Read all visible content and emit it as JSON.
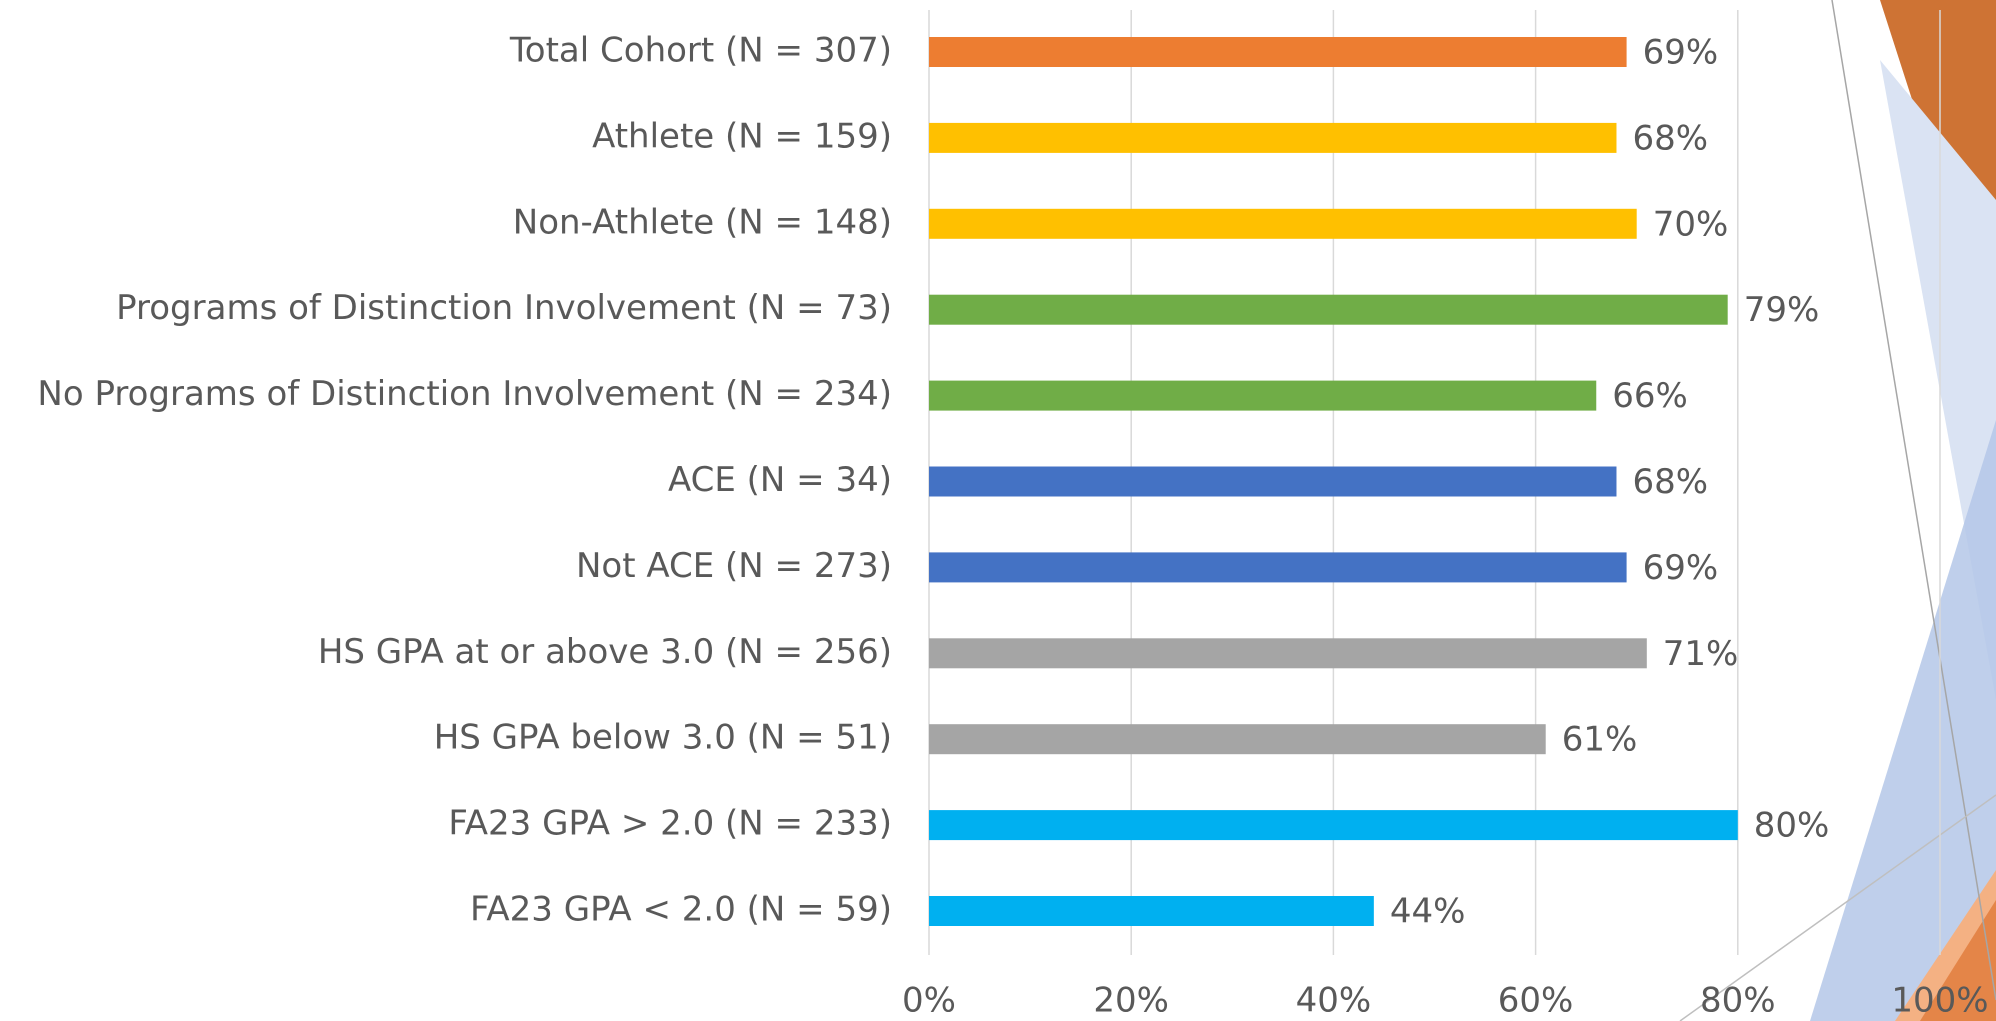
{
  "chart_data": {
    "type": "bar",
    "orientation": "horizontal",
    "categories": [
      "Total Cohort (N = 307)",
      "Athlete (N = 159)",
      "Non-Athlete (N = 148)",
      "Programs of Distinction Involvement (N = 73)",
      "No Programs of Distinction Involvement (N = 234)",
      "ACE (N = 34)",
      "Not ACE (N = 273)",
      "HS GPA at or above 3.0 (N = 256)",
      "HS GPA below 3.0 (N = 51)",
      "FA23 GPA > 2.0 (N = 233)",
      "FA23 GPA < 2.0 (N = 59)"
    ],
    "values": [
      69,
      68,
      70,
      79,
      66,
      68,
      69,
      71,
      61,
      80,
      44
    ],
    "value_labels": [
      "69%",
      "68%",
      "70%",
      "79%",
      "66%",
      "68%",
      "69%",
      "71%",
      "61%",
      "80%",
      "44%"
    ],
    "colors": [
      "#ed7d31",
      "#ffc000",
      "#ffc000",
      "#70ad47",
      "#70ad47",
      "#4472c4",
      "#4472c4",
      "#a5a5a5",
      "#a5a5a5",
      "#00b0f0",
      "#00b0f0"
    ],
    "xlim": [
      0,
      100
    ],
    "xticks": [
      {
        "value": 0,
        "label": "0%"
      },
      {
        "value": 20,
        "label": "20%"
      },
      {
        "value": 40,
        "label": "40%"
      },
      {
        "value": 60,
        "label": "60%"
      },
      {
        "value": 80,
        "label": "80%"
      },
      {
        "value": 100,
        "label": "100%"
      }
    ],
    "grid": true
  }
}
